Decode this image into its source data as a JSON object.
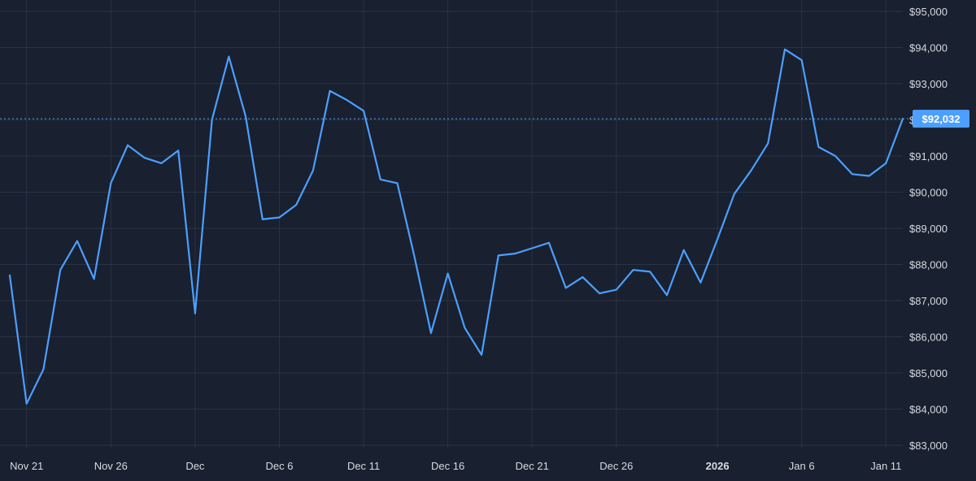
{
  "chart_data": {
    "type": "line",
    "title": "",
    "xlabel": "",
    "ylabel": "",
    "ylim": [
      83000,
      95000
    ],
    "y_ticks": [
      {
        "value": 95000,
        "label": "$95,000"
      },
      {
        "value": 94000,
        "label": "$94,000"
      },
      {
        "value": 93000,
        "label": "$93,000"
      },
      {
        "value": 92000,
        "label": "$92,000"
      },
      {
        "value": 91000,
        "label": "$91,000"
      },
      {
        "value": 90000,
        "label": "$90,000"
      },
      {
        "value": 89000,
        "label": "$89,000"
      },
      {
        "value": 88000,
        "label": "$88,000"
      },
      {
        "value": 87000,
        "label": "$87,000"
      },
      {
        "value": 86000,
        "label": "$86,000"
      },
      {
        "value": 85000,
        "label": "$85,000"
      },
      {
        "value": 84000,
        "label": "$84,000"
      },
      {
        "value": 83000,
        "label": "$83,000"
      }
    ],
    "x_ticks": [
      {
        "date": "2025-11-21",
        "label": "Nov 21",
        "bold": false
      },
      {
        "date": "2025-11-26",
        "label": "Nov 26",
        "bold": false
      },
      {
        "date": "2025-12-01",
        "label": "Dec",
        "bold": false
      },
      {
        "date": "2025-12-06",
        "label": "Dec 6",
        "bold": false
      },
      {
        "date": "2025-12-11",
        "label": "Dec 11",
        "bold": false
      },
      {
        "date": "2025-12-16",
        "label": "Dec 16",
        "bold": false
      },
      {
        "date": "2025-12-21",
        "label": "Dec 21",
        "bold": false
      },
      {
        "date": "2025-12-26",
        "label": "Dec 26",
        "bold": false
      },
      {
        "date": "2026-01-01",
        "label": "2026",
        "bold": true
      },
      {
        "date": "2026-01-06",
        "label": "Jan 6",
        "bold": false
      },
      {
        "date": "2026-01-11",
        "label": "Jan 11",
        "bold": false
      }
    ],
    "x_range": [
      "2025-11-20",
      "2026-01-12"
    ],
    "grid": true,
    "series": [
      {
        "color": "#4c9fff",
        "x": [
          "2025-11-20",
          "2025-11-21",
          "2025-11-22",
          "2025-11-23",
          "2025-11-24",
          "2025-11-25",
          "2025-11-26",
          "2025-11-27",
          "2025-11-28",
          "2025-11-29",
          "2025-11-30",
          "2025-12-01",
          "2025-12-02",
          "2025-12-03",
          "2025-12-04",
          "2025-12-05",
          "2025-12-06",
          "2025-12-07",
          "2025-12-08",
          "2025-12-09",
          "2025-12-10",
          "2025-12-11",
          "2025-12-12",
          "2025-12-13",
          "2025-12-14",
          "2025-12-15",
          "2025-12-16",
          "2025-12-17",
          "2025-12-18",
          "2025-12-19",
          "2025-12-20",
          "2025-12-21",
          "2025-12-22",
          "2025-12-23",
          "2025-12-24",
          "2025-12-25",
          "2025-12-26",
          "2025-12-27",
          "2025-12-28",
          "2025-12-29",
          "2025-12-30",
          "2025-12-31",
          "2026-01-01",
          "2026-01-02",
          "2026-01-03",
          "2026-01-04",
          "2026-01-05",
          "2026-01-06",
          "2026-01-07",
          "2026-01-08",
          "2026-01-09",
          "2026-01-10",
          "2026-01-11",
          "2026-01-12"
        ],
        "y": [
          87700,
          84150,
          85100,
          87850,
          88650,
          87600,
          90250,
          91300,
          90950,
          90800,
          91150,
          86650,
          92000,
          93750,
          92100,
          89250,
          89300,
          89650,
          90600,
          92800,
          92550,
          92250,
          90350,
          90250,
          88250,
          86100,
          87750,
          86250,
          85500,
          88250,
          88300,
          88450,
          88600,
          87350,
          87650,
          87200,
          87300,
          87850,
          87800,
          87150,
          88400,
          87500,
          88700,
          89950,
          90600,
          91350,
          93950,
          93650,
          91250,
          91000,
          90500,
          90450,
          90800,
          92032
        ]
      }
    ],
    "last_value": 92032,
    "last_value_label": "$92,032"
  }
}
